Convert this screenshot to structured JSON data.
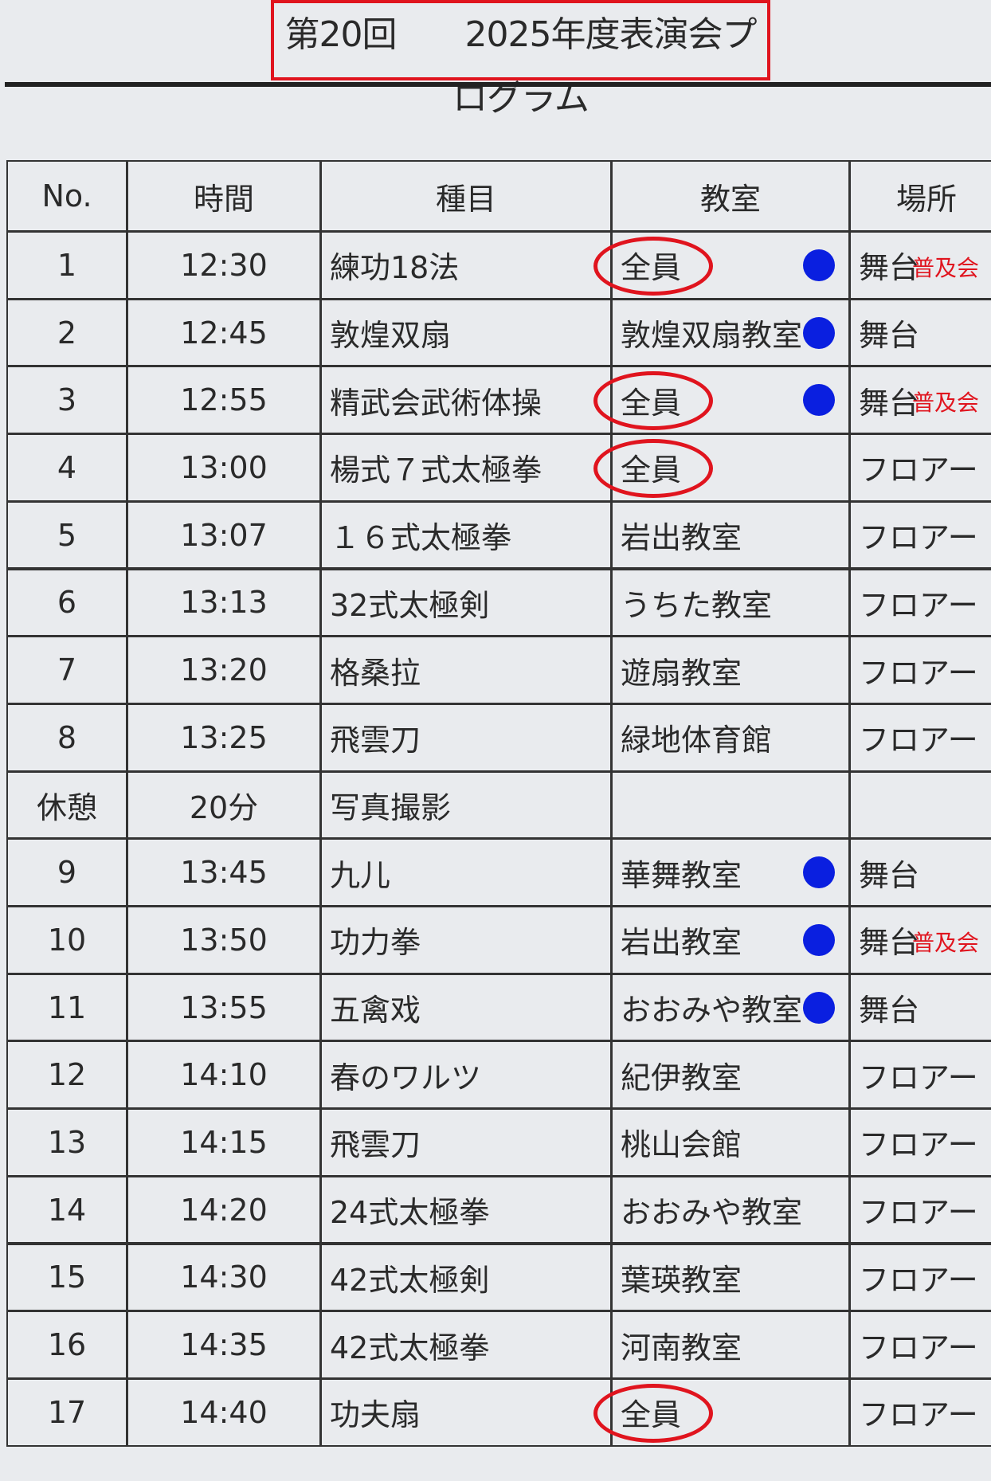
{
  "header": {
    "title": "第20回　　2025年度表演会プログラム"
  },
  "table": {
    "columns": [
      "No.",
      "時間",
      "種目",
      "教室",
      "場所"
    ],
    "rows": [
      {
        "no": "1",
        "time": "12:30",
        "item": "練功18法",
        "class": "全員",
        "place": "舞台",
        "note": "普及会"
      },
      {
        "no": "2",
        "time": "12:45",
        "item": "敦煌双扇",
        "class": "敦煌双扇教室",
        "place": "舞台"
      },
      {
        "no": "3",
        "time": "12:55",
        "item": "精武会武術体操",
        "class": "全員",
        "place": "舞台",
        "note": "普及会"
      },
      {
        "no": "4",
        "time": "13:00",
        "item": "楊式７式太極拳",
        "class": "全員",
        "place": "フロアー"
      },
      {
        "no": "5",
        "time": "13:07",
        "item": "１６式太極拳",
        "class": "岩出教室",
        "place": "フロアー"
      },
      {
        "no": "6",
        "time": "13:13",
        "item": "32式太極剣",
        "class": "うちた教室",
        "place": "フロアー"
      },
      {
        "no": "7",
        "time": "13:20",
        "item": "格桑拉",
        "class": "遊扇教室",
        "place": "フロアー"
      },
      {
        "no": "8",
        "time": "13:25",
        "item": "飛雲刀",
        "class": "緑地体育館",
        "place": "フロアー"
      },
      {
        "no": "休憩",
        "time": "20分",
        "item": "写真撮影"
      },
      {
        "no": "9",
        "time": "13:45",
        "item": "九儿",
        "class": "華舞教室",
        "place": "舞台"
      },
      {
        "no": "10",
        "time": "13:50",
        "item": "功力拳",
        "class": "岩出教室",
        "place": "舞台",
        "note": "普及会"
      },
      {
        "no": "11",
        "time": "13:55",
        "item": "五禽戏",
        "class": "おおみや教室",
        "place": "舞台"
      },
      {
        "no": "12",
        "time": "14:10",
        "item": "春のワルツ",
        "class": "紀伊教室",
        "place": "フロアー"
      },
      {
        "no": "13",
        "time": "14:15",
        "item": "飛雲刀",
        "class": "桃山会館",
        "place": "フロアー"
      },
      {
        "no": "14",
        "time": "14:20",
        "item": "24式太極拳",
        "class": "おおみや教室",
        "place": "フロアー"
      },
      {
        "no": "15",
        "time": "14:30",
        "item": "42式太極剣",
        "class": "葉瑛教室",
        "place": "フロアー"
      },
      {
        "no": "16",
        "time": "14:35",
        "item": "42式太極拳",
        "class": "河南教室",
        "place": "フロアー"
      },
      {
        "no": "17",
        "time": "14:40",
        "item": "功夫扇",
        "class": "全員",
        "place": "フロアー"
      }
    ]
  }
}
